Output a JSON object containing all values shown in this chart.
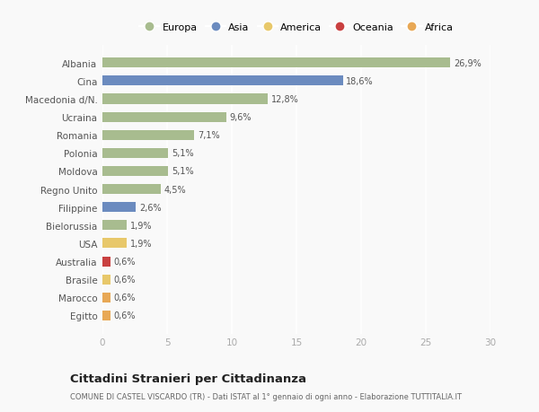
{
  "countries": [
    "Albania",
    "Cina",
    "Macedonia d/N.",
    "Ucraina",
    "Romania",
    "Polonia",
    "Moldova",
    "Regno Unito",
    "Filippine",
    "Bielorussia",
    "USA",
    "Australia",
    "Brasile",
    "Marocco",
    "Egitto"
  ],
  "values": [
    26.9,
    18.6,
    12.8,
    9.6,
    7.1,
    5.1,
    5.1,
    4.5,
    2.6,
    1.9,
    1.9,
    0.6,
    0.6,
    0.6,
    0.6
  ],
  "labels": [
    "26,9%",
    "18,6%",
    "12,8%",
    "9,6%",
    "7,1%",
    "5,1%",
    "5,1%",
    "4,5%",
    "2,6%",
    "1,9%",
    "1,9%",
    "0,6%",
    "0,6%",
    "0,6%",
    "0,6%"
  ],
  "colors": [
    "#a8bc8f",
    "#6b8bbf",
    "#a8bc8f",
    "#a8bc8f",
    "#a8bc8f",
    "#a8bc8f",
    "#a8bc8f",
    "#a8bc8f",
    "#6b8bbf",
    "#a8bc8f",
    "#e8c86a",
    "#c94040",
    "#e8c86a",
    "#e8a855",
    "#e8a855"
  ],
  "legend_items": [
    {
      "label": "Europa",
      "color": "#a8bc8f"
    },
    {
      "label": "Asia",
      "color": "#6b8bbf"
    },
    {
      "label": "America",
      "color": "#e8c86a"
    },
    {
      "label": "Oceania",
      "color": "#c94040"
    },
    {
      "label": "Africa",
      "color": "#e8a855"
    }
  ],
  "xlim": [
    0,
    30
  ],
  "xticks": [
    0,
    5,
    10,
    15,
    20,
    25,
    30
  ],
  "title": "Cittadini Stranieri per Cittadinanza",
  "subtitle": "COMUNE DI CASTEL VISCARDO (TR) - Dati ISTAT al 1° gennaio di ogni anno - Elaborazione TUTTITALIA.IT",
  "background_color": "#f9f9f9",
  "grid_color": "#e8e8e8",
  "bar_height": 0.55
}
